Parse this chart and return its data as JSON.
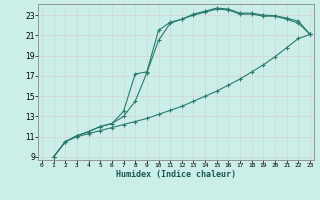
{
  "xlabel": "Humidex (Indice chaleur)",
  "bg_color": "#cceee8",
  "grid_color": "#e8e8e8",
  "line_color": "#2a7a6e",
  "xlim": [
    -0.3,
    23.3
  ],
  "ylim": [
    8.7,
    24.1
  ],
  "xticks": [
    0,
    1,
    2,
    3,
    4,
    5,
    6,
    7,
    8,
    9,
    10,
    11,
    12,
    13,
    14,
    15,
    16,
    17,
    18,
    19,
    20,
    21,
    22,
    23
  ],
  "yticks": [
    9,
    11,
    13,
    15,
    17,
    19,
    21,
    23
  ],
  "line1_x": [
    1,
    2,
    3,
    4,
    5,
    6,
    7,
    8,
    9,
    10,
    11,
    12,
    13,
    14,
    15,
    16,
    17,
    18,
    19,
    20,
    21,
    22,
    23
  ],
  "line1_y": [
    9.0,
    10.5,
    11.1,
    11.5,
    12.0,
    12.3,
    13.5,
    17.2,
    17.4,
    21.5,
    22.3,
    22.6,
    23.1,
    23.4,
    23.7,
    23.6,
    23.2,
    23.2,
    23.0,
    22.95,
    22.7,
    22.4,
    21.1
  ],
  "line2_x": [
    1,
    2,
    3,
    4,
    5,
    6,
    7,
    8,
    9,
    10,
    11,
    12,
    13,
    14,
    15,
    16,
    17,
    18,
    19,
    20,
    21,
    22,
    23
  ],
  "line2_y": [
    9.0,
    10.5,
    11.1,
    11.5,
    12.0,
    12.3,
    13.0,
    14.5,
    17.3,
    20.5,
    22.2,
    22.6,
    23.0,
    23.3,
    23.6,
    23.5,
    23.1,
    23.1,
    22.9,
    22.9,
    22.6,
    22.2,
    21.1
  ],
  "line3_x": [
    1,
    2,
    3,
    4,
    5,
    6,
    7,
    8,
    9,
    10,
    11,
    12,
    13,
    14,
    15,
    16,
    17,
    18,
    19,
    20,
    21,
    22,
    23
  ],
  "line3_y": [
    9.0,
    10.5,
    11.0,
    11.3,
    11.6,
    11.9,
    12.2,
    12.5,
    12.8,
    13.2,
    13.6,
    14.0,
    14.5,
    15.0,
    15.5,
    16.1,
    16.7,
    17.4,
    18.1,
    18.9,
    19.8,
    20.7,
    21.1
  ]
}
